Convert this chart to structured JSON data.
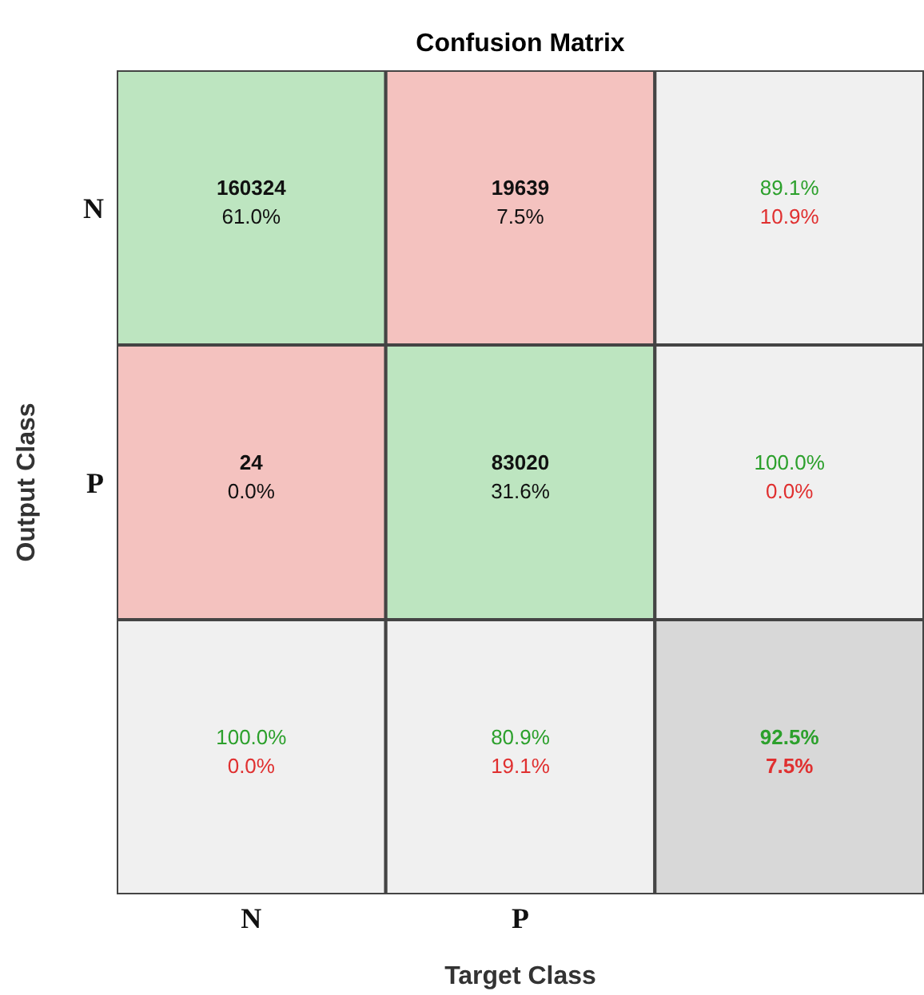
{
  "chart_data": {
    "type": "heatmap",
    "title": "Confusion Matrix",
    "xlabel": "Target Class",
    "ylabel": "Output Class",
    "categories": [
      "N",
      "P",
      null
    ],
    "y_categories": [
      "N",
      "P",
      null
    ],
    "cells": [
      [
        160324,
        19639,
        89.1
      ],
      [
        24,
        83020,
        100.0
      ],
      [
        100.0,
        80.9,
        92.5
      ]
    ],
    "cell_labels": [
      [
        "160324",
        "19639",
        "89.1%"
      ],
      [
        "24",
        "83020",
        "100.0%"
      ],
      [
        "100.0%",
        "80.9%",
        "92.5%"
      ]
    ],
    "annotations": [
      "61.0%",
      "7.5%",
      "10.9%",
      "0.0%",
      "31.6%",
      "0.0%",
      "0.0%",
      "19.1%",
      "7.5%"
    ],
    "colors": [
      [
        "#bde5c0",
        "#f4c2bf",
        "#f0f0f0"
      ],
      [
        "#f4c2bf",
        "#bde5c0",
        "#f0f0f0"
      ],
      [
        "#f0f0f0",
        "#f0f0f0",
        "#d8d8d8"
      ]
    ]
  }
}
